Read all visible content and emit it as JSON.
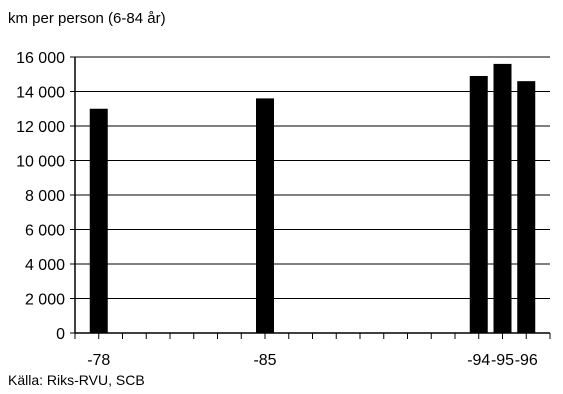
{
  "chart_data": {
    "type": "bar",
    "ylabel": "km per person (6-84 år)",
    "categories": [
      "-78",
      "-85",
      "-94",
      "-95",
      "-96"
    ],
    "x": [
      1978,
      1985,
      1994,
      1995,
      1996
    ],
    "values": [
      13000,
      13600,
      14900,
      15600,
      14600
    ],
    "ylim": [
      0,
      16000
    ],
    "yticks": [
      0,
      2000,
      4000,
      6000,
      8000,
      10000,
      12000,
      14000,
      16000
    ],
    "ytick_labels": [
      "0",
      "2 000",
      "4 000",
      "6 000",
      "8 000",
      "10 000",
      "12 000",
      "14 000",
      "16 000"
    ],
    "xlim": [
      1977,
      1997
    ],
    "grid": true,
    "bar_color": "#000000",
    "source": "Källa: Riks-RVU, SCB"
  }
}
